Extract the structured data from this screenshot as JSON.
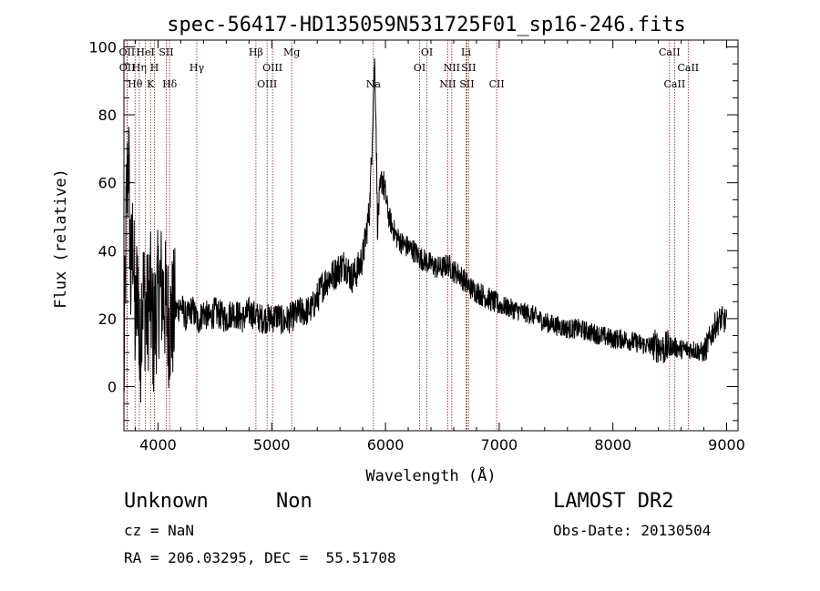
{
  "chart_data": {
    "type": "line",
    "title": "spec-56417-HD135059N531725F01_sp16-246.fits",
    "xlabel": "Wavelength (Å)",
    "ylabel": "Flux (relative)",
    "xlim": [
      3700,
      9100
    ],
    "ylim": [
      -13,
      102
    ],
    "xticks": [
      4000,
      5000,
      6000,
      7000,
      8000,
      9000
    ],
    "xtick_labels": [
      "4000",
      "5000",
      "6000",
      "7000",
      "8000",
      "9000"
    ],
    "yticks": [
      0,
      20,
      40,
      60,
      80,
      100
    ],
    "ytick_labels": [
      "0",
      "20",
      "40",
      "60",
      "80",
      "100"
    ],
    "grid": false,
    "line_color": "#000000",
    "marker_color": "#8b1a1a",
    "series": [
      {
        "x": [
          3700,
          3720,
          3740,
          3760,
          3780,
          3800,
          3820,
          3840,
          3860,
          3880,
          3900,
          3930,
          3960,
          3990,
          4020,
          4060,
          4100,
          4150,
          4200,
          4250,
          4300,
          4350,
          4400,
          4450,
          4500,
          4550,
          4600,
          4650,
          4700,
          4750,
          4800,
          4850,
          4900,
          4950,
          5000,
          5050,
          5100,
          5150,
          5200,
          5250,
          5300,
          5350,
          5400,
          5450,
          5500,
          5550,
          5600,
          5650,
          5700,
          5750,
          5800,
          5830,
          5860,
          5880,
          5895,
          5905,
          5915,
          5930,
          5950,
          5970,
          6000,
          6030,
          6060,
          6100,
          6150,
          6200,
          6250,
          6300,
          6350,
          6400,
          6450,
          6500,
          6550,
          6600,
          6650,
          6700,
          6750,
          6800,
          6850,
          6900,
          6950,
          7000,
          7100,
          7200,
          7300,
          7400,
          7500,
          7600,
          7700,
          7800,
          7900,
          8000,
          8100,
          8200,
          8300,
          8400,
          8450,
          8500,
          8600,
          8700,
          8800,
          8850,
          8900,
          8950,
          9000
        ],
        "y": [
          0,
          50,
          70,
          30,
          45,
          15,
          35,
          5,
          30,
          25,
          20,
          28,
          15,
          25,
          30,
          25,
          18,
          22,
          24,
          20,
          23,
          19,
          22,
          20,
          22,
          21,
          20,
          22,
          21,
          20,
          22,
          21,
          20,
          20,
          20,
          21,
          19,
          20,
          21,
          22,
          22,
          23,
          26,
          30,
          32,
          33,
          35,
          36,
          32,
          34,
          38,
          45,
          52,
          70,
          88,
          95,
          82,
          48,
          56,
          62,
          56,
          50,
          47,
          44,
          42,
          41,
          40,
          38,
          37,
          36,
          35,
          35,
          36,
          34,
          33,
          31,
          29,
          28,
          27,
          26,
          25,
          24,
          23,
          22,
          21,
          19,
          18,
          17,
          17,
          16,
          15,
          14,
          14,
          13,
          12,
          12,
          11,
          12,
          11,
          11,
          10,
          14,
          18,
          20,
          19
        ]
      }
    ],
    "line_markers": [
      {
        "x": 3727,
        "label": "OII",
        "row": 0
      },
      {
        "x": 3729,
        "label": "OII",
        "row": 1
      },
      {
        "x": 3798,
        "label": "Hθ",
        "row": 2
      },
      {
        "x": 3835,
        "label": "Hη",
        "row": 1
      },
      {
        "x": 3889,
        "label": "HeI",
        "row": 0
      },
      {
        "x": 3934,
        "label": "K",
        "row": 2
      },
      {
        "x": 3969,
        "label": "H",
        "row": 1
      },
      {
        "x": 4072,
        "label": "SII",
        "row": 0
      },
      {
        "x": 4102,
        "label": "Hδ",
        "row": 2
      },
      {
        "x": 4341,
        "label": "Hγ",
        "row": 1
      },
      {
        "x": 4861,
        "label": "Hβ",
        "row": 0
      },
      {
        "x": 4959,
        "label": "OIII",
        "row": 2
      },
      {
        "x": 5007,
        "label": "OIII",
        "row": 1
      },
      {
        "x": 5175,
        "label": "Mg",
        "row": 0
      },
      {
        "x": 5894,
        "label": "Na",
        "row": 2
      },
      {
        "x": 6300,
        "label": "OI",
        "row": 1
      },
      {
        "x": 6364,
        "label": "OI",
        "row": 0
      },
      {
        "x": 6548,
        "label": "NII",
        "row": 2
      },
      {
        "x": 6583,
        "label": "NII",
        "row": 1
      },
      {
        "x": 6708,
        "label": "Li",
        "row": 0
      },
      {
        "x": 6716,
        "label": "SII",
        "row": 2
      },
      {
        "x": 6731,
        "label": "SII",
        "row": 1
      },
      {
        "x": 6978,
        "label": "CII",
        "row": 2
      },
      {
        "x": 8498,
        "label": "CaII",
        "row": 0
      },
      {
        "x": 8542,
        "label": "CaII",
        "row": 2
      },
      {
        "x": 8662,
        "label": "CaII",
        "row": 1
      }
    ]
  },
  "footer": {
    "object_class": "Unknown",
    "subclass": "Non",
    "survey": "LAMOST DR2",
    "redshift": "cz = NaN",
    "obs_date": "Obs-Date: 20130504",
    "coords": "RA = 206.03295, DEC =  55.51708"
  }
}
